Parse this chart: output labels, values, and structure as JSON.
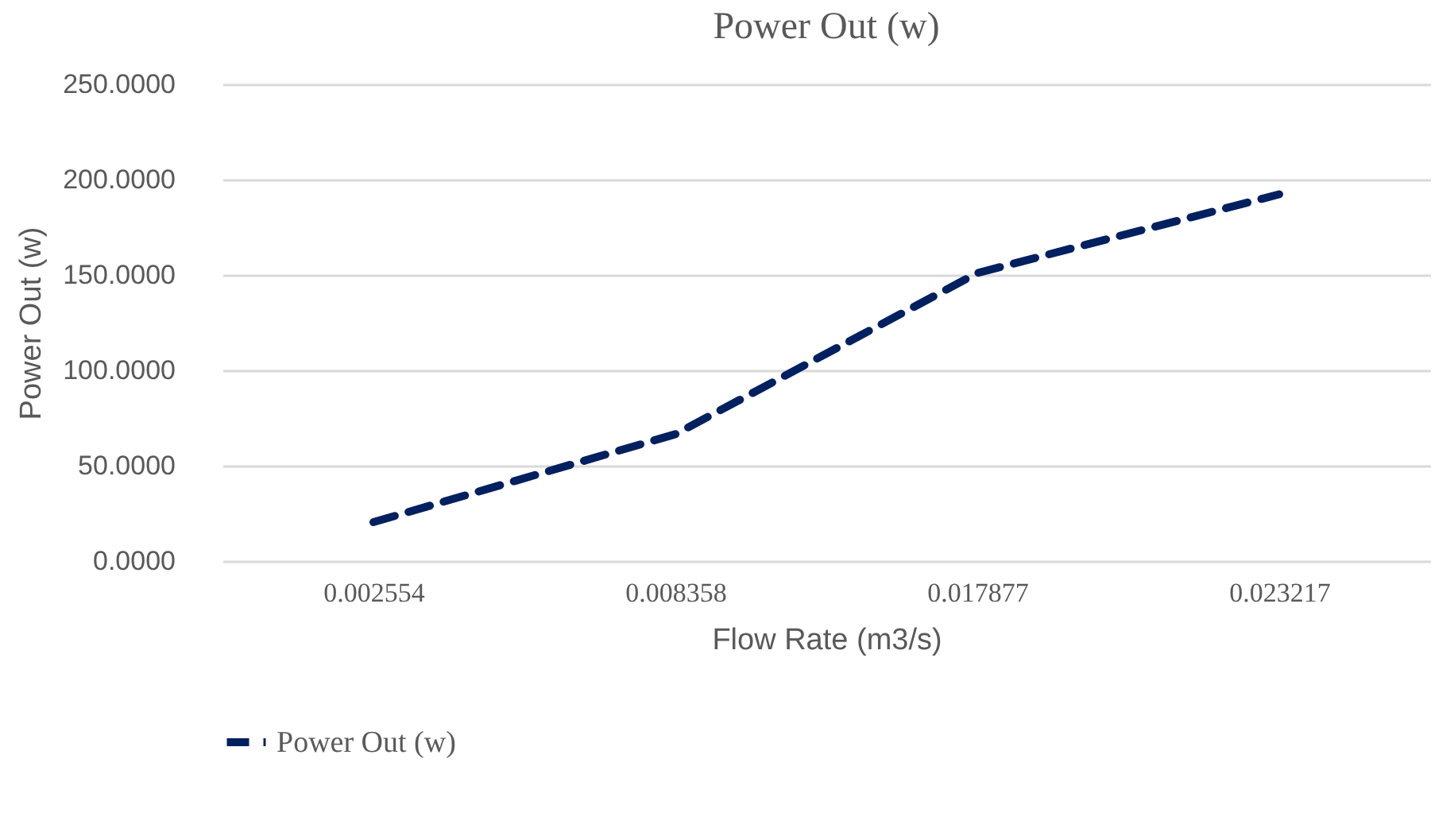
{
  "chart_data": {
    "type": "line",
    "title": "Power Out (w)",
    "xlabel": "Flow  Rate (m3/s)",
    "ylabel": "Power Out (w)",
    "categories": [
      "0.002554",
      "0.008358",
      "0.017877",
      "0.023217"
    ],
    "series": [
      {
        "name": "Power Out (w)",
        "color": "#002060",
        "values": [
          20.4,
          66.5,
          151,
          192.3
        ]
      }
    ],
    "ylim": [
      0,
      250
    ],
    "yticks": [
      {
        "value": 0,
        "label": "0.0000"
      },
      {
        "value": 50,
        "label": "50.0000"
      },
      {
        "value": 100,
        "label": "100.0000"
      },
      {
        "value": 150,
        "label": "150.0000"
      },
      {
        "value": 200,
        "label": "200.0000"
      },
      {
        "value": 250,
        "label": "250.0000"
      }
    ],
    "grid": "y",
    "legend": "bottom",
    "line_style": "dashed",
    "marker": "none"
  }
}
